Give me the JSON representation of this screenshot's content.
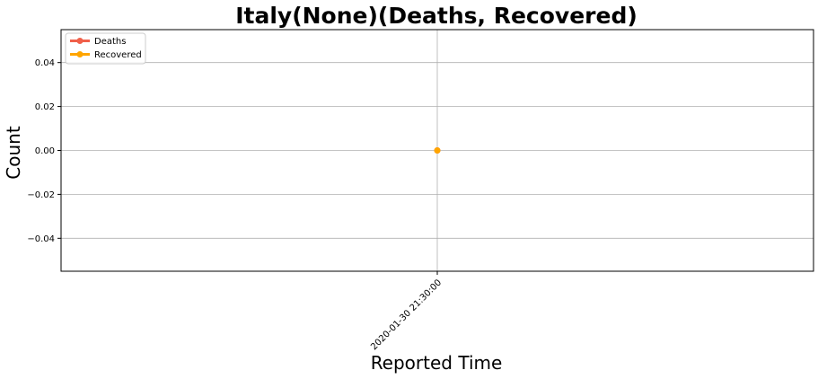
{
  "chart_data": {
    "type": "line",
    "title": "Italy(None)(Deaths, Recovered)",
    "xlabel": "Reported Time",
    "ylabel": "Count",
    "x": [
      "2020-01-30 21:30:00"
    ],
    "y_ticks": [
      -0.04,
      -0.02,
      0.0,
      0.02,
      0.04
    ],
    "y_tick_labels": [
      "−0.04",
      "−0.02",
      "0.00",
      "0.02",
      "0.04"
    ],
    "ylim": [
      -0.055,
      0.055
    ],
    "grid": true,
    "legend_position": "top-left",
    "series": [
      {
        "name": "Deaths",
        "values": [
          0
        ],
        "color": "#f0604a"
      },
      {
        "name": "Recovered",
        "values": [
          0
        ],
        "color": "#ffa500"
      }
    ]
  }
}
